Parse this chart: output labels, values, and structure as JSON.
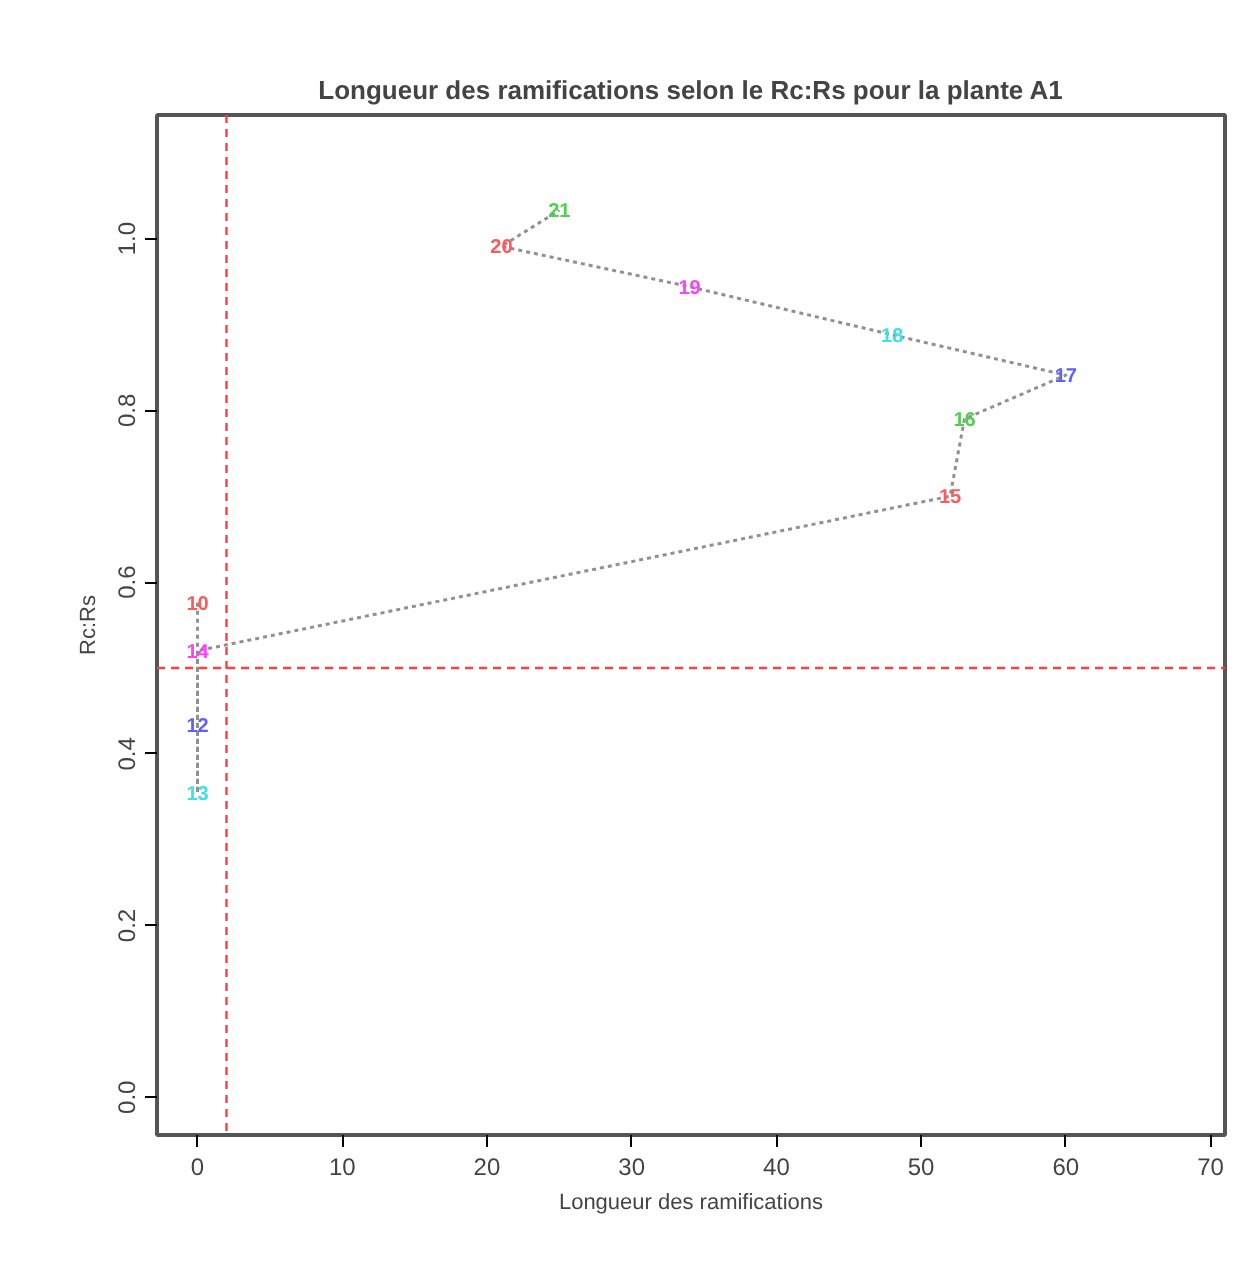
{
  "chart_data": {
    "type": "line",
    "title": "Longueur des ramifications selon le Rc:Rs pour la plante A1",
    "xlabel": "Longueur des ramifications",
    "ylabel": "Rc:Rs",
    "series": [
      {
        "color": "#909090",
        "line_style": "dotted",
        "marker": "none",
        "x": [
          0,
          0,
          0,
          0,
          0,
          52,
          53,
          60,
          48,
          34,
          21,
          25
        ],
        "values": [
          0.576,
          0.522,
          0.434,
          0.354,
          0.52,
          0.7,
          0.79,
          0.841,
          0.888,
          0.944,
          0.991,
          1.033
        ],
        "colors": [
          "#ff5a5a",
          "#4fd04f",
          "#6060ff",
          "#40e0e0",
          "#ff40ff",
          "#ff5a5a",
          "#4fd04f",
          "#6060ff",
          "#40e0e0",
          "#ff40ff",
          "#ff5a5a",
          "#4fd04f"
        ]
      }
    ],
    "annotations": [
      {
        "text": "10",
        "x": 0,
        "y": 0.576
      },
      {
        "text": "12",
        "x": 0,
        "y": 0.434
      },
      {
        "text": "13",
        "x": 0,
        "y": 0.354
      },
      {
        "text": "14",
        "x": 0,
        "y": 0.52
      },
      {
        "text": "15",
        "x": 52,
        "y": 0.7
      },
      {
        "text": "16",
        "x": 53,
        "y": 0.79
      },
      {
        "text": "17",
        "x": 60,
        "y": 0.841
      },
      {
        "text": "18",
        "x": 48,
        "y": 0.888
      },
      {
        "text": "19",
        "x": 34,
        "y": 0.944
      },
      {
        "text": "20",
        "x": 21,
        "y": 0.991
      },
      {
        "text": "21",
        "x": 25,
        "y": 1.033
      }
    ],
    "xlim": [
      -2.8,
      71
    ],
    "ylim": [
      -0.044,
      1.144
    ],
    "xticks": [
      0,
      10,
      20,
      30,
      40,
      50,
      60,
      70
    ],
    "yticks": [
      {
        "value": 0,
        "label": "0.0"
      },
      0.2,
      0.4,
      0.6,
      0.8,
      {
        "value": 1,
        "label": "1.0"
      }
    ],
    "ref_lines": [
      {
        "axis": "x",
        "value": 2,
        "color": "#ff4040",
        "line_style": "dashed"
      },
      {
        "axis": "y",
        "value": 0.5,
        "color": "#ff4040",
        "line_style": "dashed"
      }
    ],
    "grid": false
  }
}
